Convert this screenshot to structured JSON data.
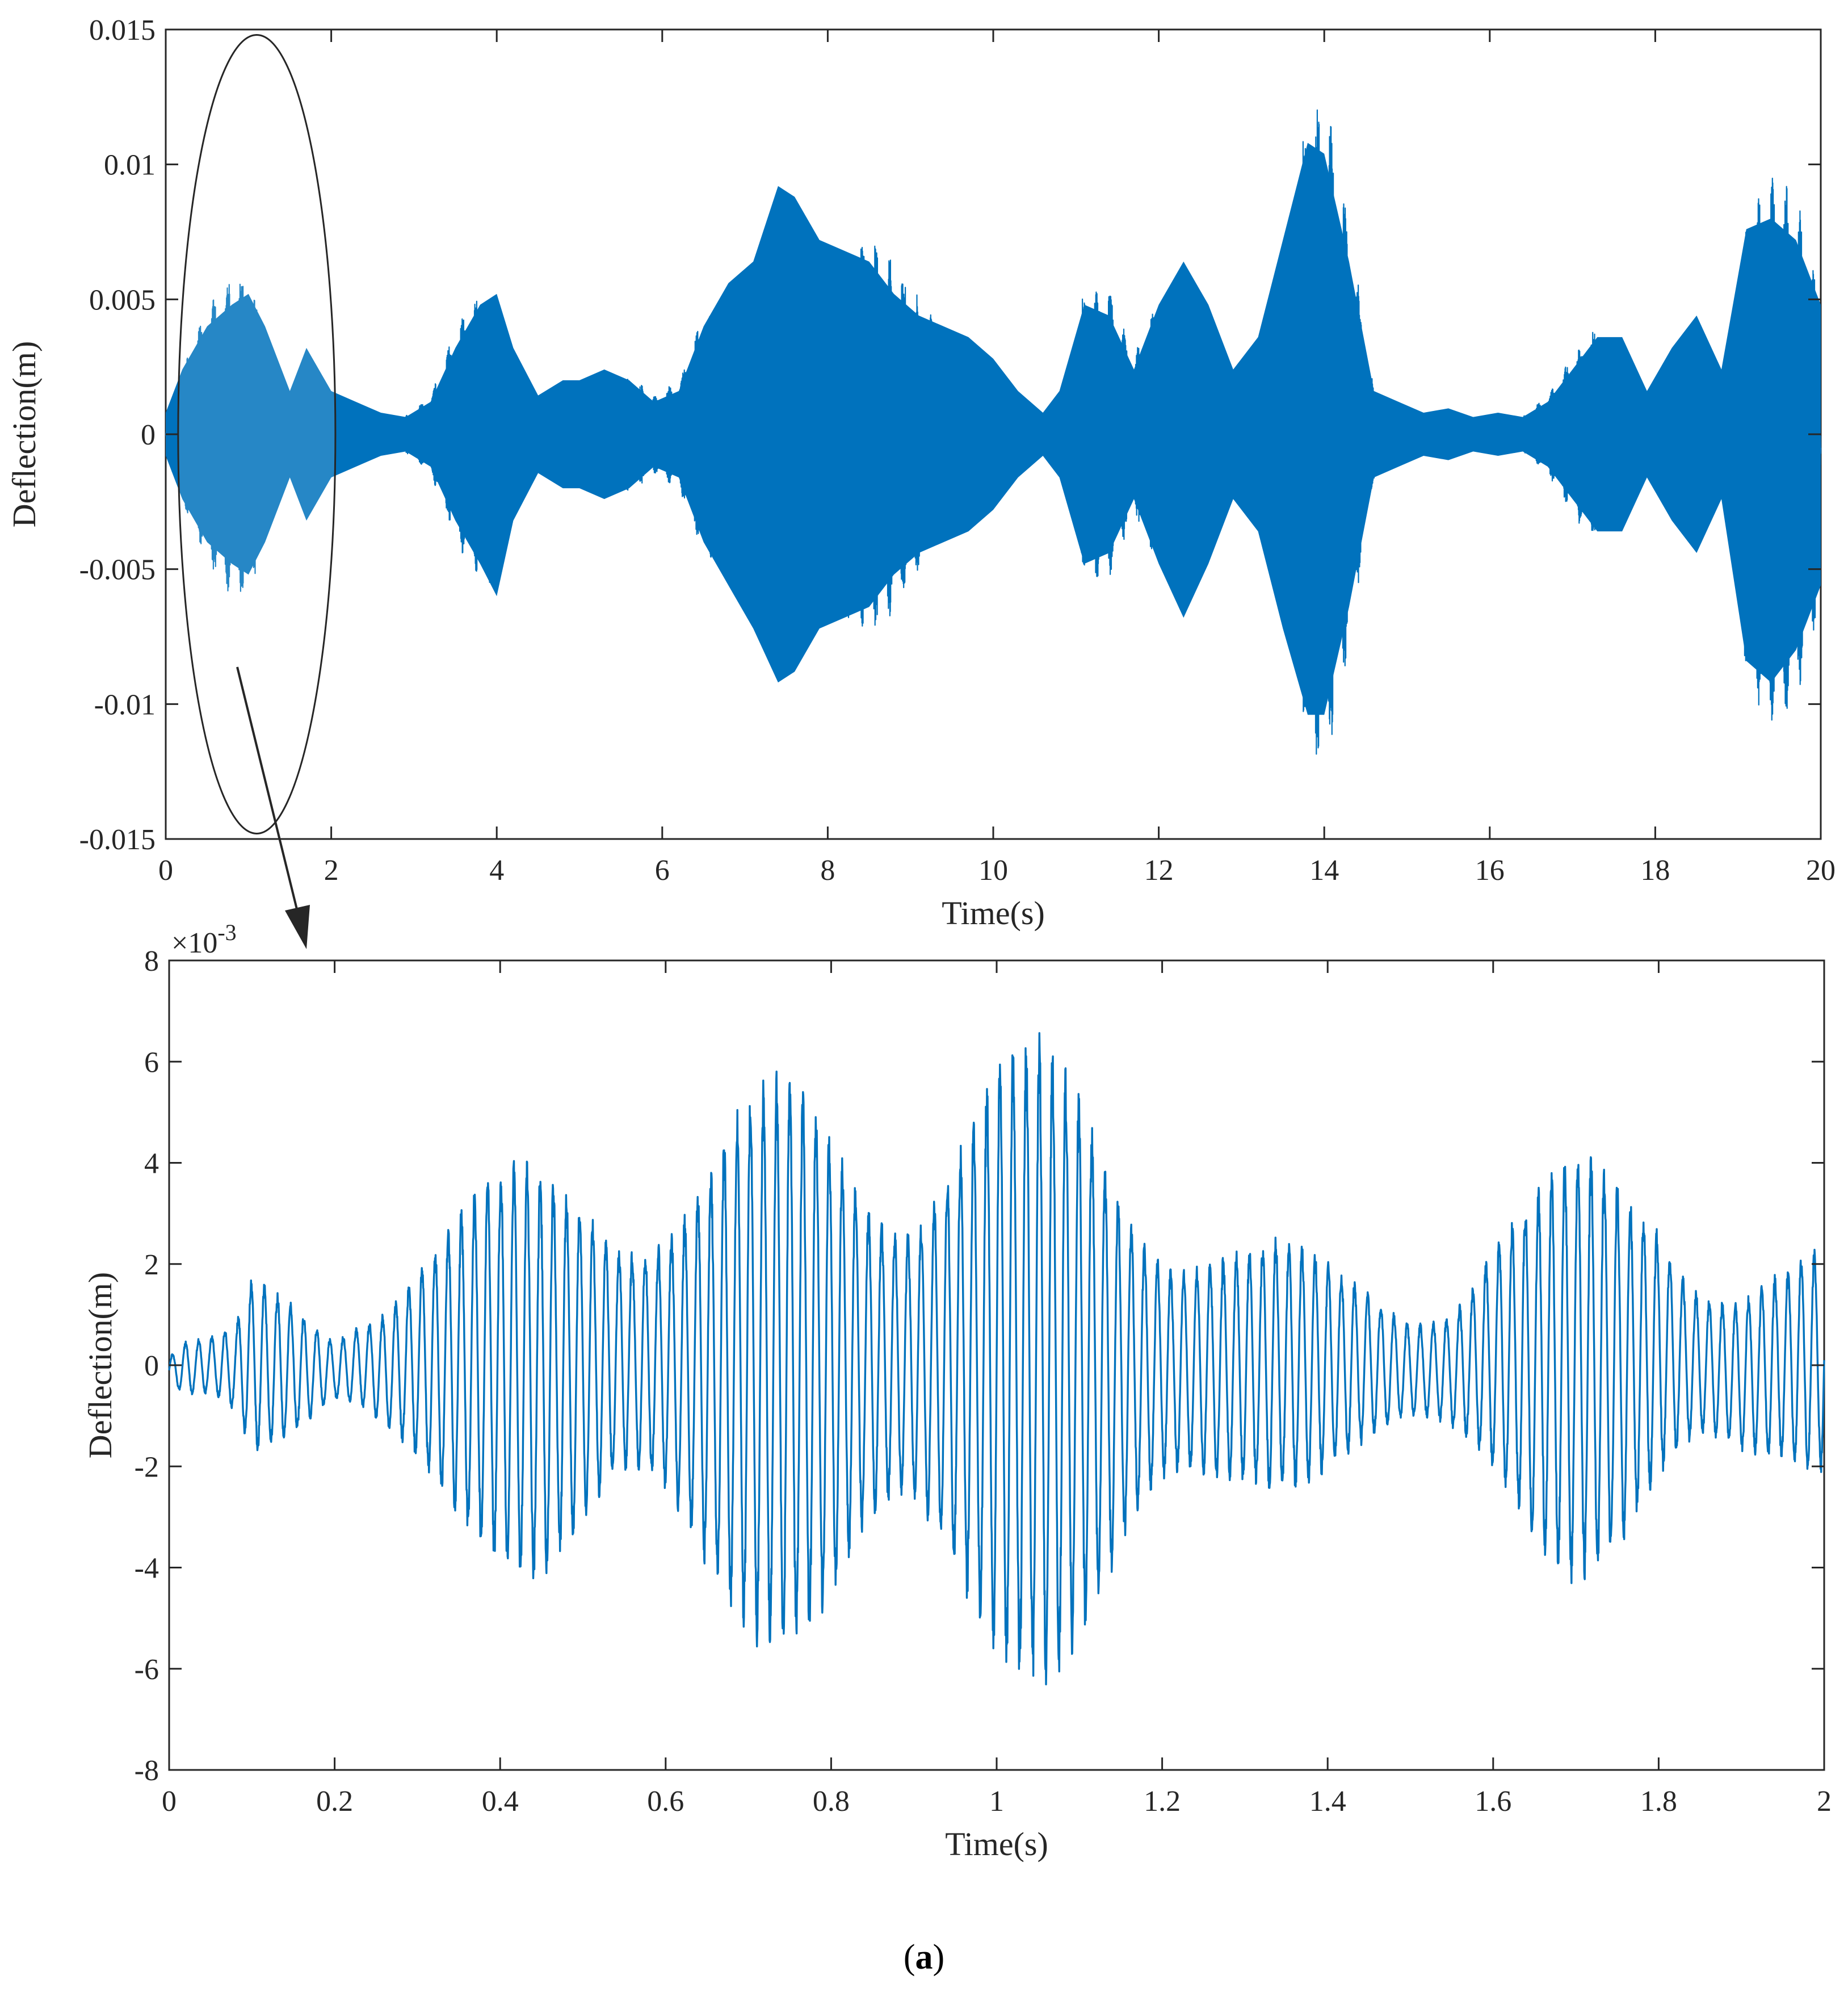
{
  "chart_data": [
    {
      "type": "line",
      "xlabel": "Time(s)",
      "ylabel": "Deflection(m)",
      "xlim": [
        0,
        20
      ],
      "ylim": [
        -0.015,
        0.015
      ],
      "x_ticks": [
        "0",
        "2",
        "4",
        "6",
        "8",
        "10",
        "12",
        "14",
        "16",
        "18",
        "20"
      ],
      "y_ticks": [
        "-0.015",
        "-0.01",
        "-0.005",
        "0",
        "0.005",
        "0.01",
        "0.015"
      ],
      "grid": false,
      "line_color": "#0072BD",
      "description_style": "dense oscillating signal; values given as upper/lower envelope of deflection vs time",
      "envelope": {
        "x": [
          0.0,
          0.2,
          0.5,
          0.8,
          1.0,
          1.2,
          1.5,
          1.7,
          2.0,
          2.3,
          2.6,
          2.9,
          3.2,
          3.5,
          3.8,
          4.0,
          4.2,
          4.5,
          4.8,
          5.0,
          5.3,
          5.6,
          5.9,
          6.2,
          6.5,
          6.8,
          7.1,
          7.4,
          7.6,
          7.9,
          8.2,
          8.5,
          8.8,
          9.1,
          9.4,
          9.7,
          10.0,
          10.3,
          10.6,
          10.8,
          11.1,
          11.4,
          11.7,
          12.0,
          12.3,
          12.6,
          12.9,
          13.2,
          13.5,
          13.8,
          14.0,
          14.3,
          14.6,
          14.9,
          15.2,
          15.5,
          15.8,
          16.1,
          16.4,
          16.7,
          17.0,
          17.3,
          17.6,
          17.9,
          18.2,
          18.5,
          18.8,
          19.1,
          19.4,
          19.7,
          20.0
        ],
        "upper": [
          0.001,
          0.003,
          0.005,
          0.006,
          0.0065,
          0.005,
          0.002,
          0.004,
          0.002,
          0.0015,
          0.001,
          0.0008,
          0.0015,
          0.004,
          0.006,
          0.0065,
          0.004,
          0.0018,
          0.0025,
          0.0025,
          0.003,
          0.0025,
          0.0015,
          0.002,
          0.005,
          0.007,
          0.008,
          0.0115,
          0.011,
          0.009,
          0.0085,
          0.008,
          0.0065,
          0.0055,
          0.005,
          0.0045,
          0.0035,
          0.002,
          0.001,
          0.002,
          0.006,
          0.0055,
          0.003,
          0.006,
          0.008,
          0.006,
          0.003,
          0.0045,
          0.009,
          0.0135,
          0.013,
          0.008,
          0.002,
          0.0015,
          0.001,
          0.0012,
          0.0008,
          0.001,
          0.0008,
          0.0015,
          0.003,
          0.0045,
          0.0045,
          0.002,
          0.004,
          0.0055,
          0.003,
          0.0095,
          0.01,
          0.009,
          0.006
        ],
        "lower": [
          -0.001,
          -0.003,
          -0.005,
          -0.006,
          -0.0065,
          -0.005,
          -0.002,
          -0.004,
          -0.002,
          -0.0015,
          -0.001,
          -0.0008,
          -0.0015,
          -0.004,
          -0.006,
          -0.0075,
          -0.004,
          -0.0018,
          -0.0025,
          -0.0025,
          -0.003,
          -0.0025,
          -0.0015,
          -0.002,
          -0.005,
          -0.007,
          -0.009,
          -0.0115,
          -0.011,
          -0.009,
          -0.0085,
          -0.008,
          -0.0065,
          -0.0055,
          -0.005,
          -0.0045,
          -0.0035,
          -0.002,
          -0.001,
          -0.002,
          -0.006,
          -0.0055,
          -0.003,
          -0.006,
          -0.0085,
          -0.006,
          -0.003,
          -0.0045,
          -0.009,
          -0.013,
          -0.013,
          -0.008,
          -0.002,
          -0.0015,
          -0.001,
          -0.0012,
          -0.0008,
          -0.001,
          -0.0008,
          -0.0015,
          -0.003,
          -0.0045,
          -0.0045,
          -0.002,
          -0.004,
          -0.0055,
          -0.003,
          -0.0105,
          -0.0115,
          -0.01,
          -0.007
        ]
      },
      "annotation": {
        "type": "ellipse",
        "center_x": 1.1,
        "center_y": 0.0,
        "span_x": [
          0.15,
          2.05
        ],
        "span_y": [
          -0.0148,
          0.0148
        ]
      }
    },
    {
      "type": "line",
      "xlabel": "Time(s)",
      "ylabel": "Deflection(m)",
      "y_exponent_label": "×10",
      "y_exponent_power": "-3",
      "xlim": [
        0,
        2
      ],
      "ylim": [
        -8,
        8
      ],
      "y_unit_scale": 0.001,
      "x_ticks": [
        "0",
        "0.2",
        "0.4",
        "0.6",
        "0.8",
        "1",
        "1.2",
        "1.4",
        "1.6",
        "1.8",
        "2"
      ],
      "y_ticks": [
        "-8",
        "-6",
        "-4",
        "-2",
        "0",
        "2",
        "4",
        "6",
        "8"
      ],
      "grid": false,
      "line_color": "#0072BD",
      "oscillation_frequency_hz": 63,
      "envelope": {
        "x": [
          0.0,
          0.02,
          0.05,
          0.08,
          0.1,
          0.15,
          0.2,
          0.23,
          0.26,
          0.3,
          0.35,
          0.4,
          0.45,
          0.5,
          0.55,
          0.6,
          0.65,
          0.7,
          0.75,
          0.8,
          0.85,
          0.9,
          0.95,
          1.0,
          1.05,
          1.1,
          1.15,
          1.2,
          1.25,
          1.3,
          1.35,
          1.4,
          1.45,
          1.5,
          1.55,
          1.6,
          1.65,
          1.7,
          1.75,
          1.8,
          1.85,
          1.9,
          1.95,
          2.0
        ],
        "upper": [
          0.3,
          0.6,
          0.6,
          0.8,
          1.8,
          1.6,
          1.0,
          1.8,
          2.4,
          3.2,
          3.6,
          4.0,
          4.4,
          5.0,
          5.1,
          5.0,
          5.2,
          5.6,
          6.0,
          6.2,
          6.0,
          6.2,
          6.6,
          6.9,
          6.6,
          6.2,
          5.6,
          4.8,
          4.0,
          3.0,
          2.6,
          2.2,
          2.0,
          1.8,
          2.4,
          3.6,
          3.8,
          4.4,
          4.3,
          4.4,
          3.2,
          2.6,
          2.4,
          2.4
        ],
        "upper_units_note": "values in units of 1e-3 m",
        "lower": [
          -0.5,
          -0.7,
          -0.6,
          -0.9,
          -1.8,
          -1.8,
          -1.2,
          -1.8,
          -2.6,
          -3.2,
          -3.6,
          -4.0,
          -4.8,
          -5.0,
          -4.9,
          -5.0,
          -5.4,
          -5.6,
          -6.0,
          -6.2,
          -6.0,
          -6.2,
          -6.6,
          -6.7,
          -6.4,
          -6.3,
          -6.0,
          -5.0,
          -4.2,
          -3.0,
          -2.6,
          -2.2,
          -2.0,
          -2.0,
          -2.6,
          -3.4,
          -3.8,
          -4.4,
          -4.4,
          -4.0,
          -3.2,
          -3.0,
          -2.4,
          -2.2
        ]
      }
    }
  ],
  "caption": {
    "open_paren": "(",
    "letter": "a",
    "close_paren": ")"
  }
}
